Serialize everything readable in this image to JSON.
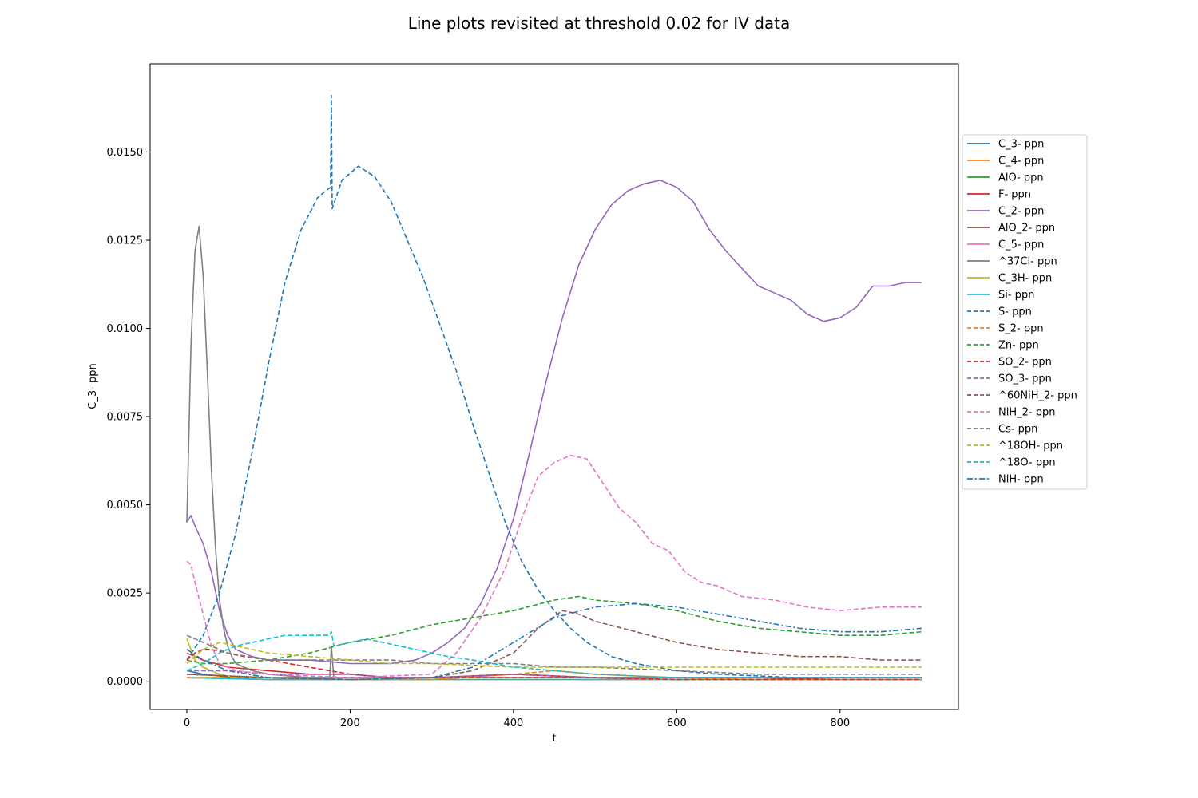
{
  "chart_data": {
    "type": "line",
    "title": "Line plots revisited at threshold 0.02 for IV data",
    "xlabel": "t",
    "ylabel": "C_3- ppn",
    "xlim": [
      -45,
      945
    ],
    "ylim": [
      -0.0008,
      0.0175
    ],
    "xticks": [
      0,
      200,
      400,
      600,
      800
    ],
    "xtick_labels": [
      "0",
      "200",
      "400",
      "600",
      "800"
    ],
    "yticks": [
      0.0,
      0.0025,
      0.005,
      0.0075,
      0.01,
      0.0125,
      0.015
    ],
    "ytick_labels": [
      "0.0000",
      "0.0025",
      "0.0050",
      "0.0075",
      "0.0100",
      "0.0125",
      "0.0150"
    ],
    "grid": false,
    "legend_position": "outside right",
    "series": [
      {
        "name": "C_3- ppn",
        "color": "#1f77b4",
        "dash": "solid",
        "x": [
          0,
          20,
          60,
          100,
          200,
          300,
          400,
          500,
          600,
          700,
          800,
          900
        ],
        "y": [
          0.0003,
          0.0002,
          0.0001,
          0.0001,
          0.0001,
          0.0001,
          0.0001,
          0.0001,
          0.0001,
          0.0001,
          0.0001,
          0.0001
        ]
      },
      {
        "name": "C_4- ppn",
        "color": "#ff7f0e",
        "dash": "solid",
        "x": [
          0,
          100,
          200,
          300,
          400,
          500,
          600,
          700,
          800,
          900
        ],
        "y": [
          0.0001,
          5e-05,
          5e-05,
          5e-05,
          0.0002,
          0.0001,
          5e-05,
          5e-05,
          5e-05,
          5e-05
        ]
      },
      {
        "name": "AlO- ppn",
        "color": "#2ca02c",
        "dash": "solid",
        "x": [
          0,
          100,
          200,
          300,
          400,
          500,
          600,
          700,
          800,
          900
        ],
        "y": [
          0.0001,
          0.0001,
          0.0001,
          0.0001,
          0.0001,
          0.0001,
          0.0001,
          0.0001,
          0.0001,
          0.0001
        ]
      },
      {
        "name": "F- ppn",
        "color": "#d62728",
        "dash": "solid",
        "x": [
          0,
          20,
          50,
          100,
          150,
          200,
          250,
          300,
          400,
          500,
          600,
          700,
          800,
          900
        ],
        "y": [
          0.0008,
          0.0006,
          0.0004,
          0.0003,
          0.0002,
          0.0002,
          0.0001,
          0.0001,
          0.0002,
          0.0001,
          0.0001,
          0.0001,
          5e-05,
          5e-05
        ]
      },
      {
        "name": "C_2- ppn",
        "color": "#9467bd",
        "dash": "solid",
        "x": [
          0,
          5,
          10,
          20,
          30,
          40,
          50,
          60,
          80,
          100,
          150,
          200,
          250,
          280,
          300,
          320,
          340,
          360,
          380,
          400,
          420,
          440,
          460,
          480,
          500,
          520,
          540,
          560,
          580,
          600,
          620,
          640,
          660,
          680,
          700,
          720,
          740,
          760,
          780,
          800,
          820,
          840,
          860,
          880,
          900
        ],
        "y": [
          0.0045,
          0.0047,
          0.0044,
          0.0039,
          0.0031,
          0.002,
          0.0013,
          0.0009,
          0.0007,
          0.0006,
          0.0006,
          0.0005,
          0.0005,
          0.0006,
          0.0008,
          0.0011,
          0.0015,
          0.0022,
          0.0032,
          0.0046,
          0.0065,
          0.0085,
          0.0103,
          0.0118,
          0.0128,
          0.0135,
          0.0139,
          0.0141,
          0.0142,
          0.014,
          0.0136,
          0.0128,
          0.0122,
          0.0117,
          0.0112,
          0.011,
          0.0108,
          0.0104,
          0.0102,
          0.0103,
          0.0106,
          0.0112,
          0.0112,
          0.0113,
          0.0113
        ]
      },
      {
        "name": "AlO_2- ppn",
        "color": "#8c564b",
        "dash": "solid",
        "x": [
          0,
          100,
          200,
          300,
          400,
          500,
          600,
          700,
          800,
          900
        ],
        "y": [
          0.0002,
          0.0001,
          0.0001,
          0.0001,
          0.0001,
          0.0001,
          0.0001,
          0.0001,
          0.0001,
          0.0001
        ]
      },
      {
        "name": "C_5- ppn",
        "color": "#e377c2",
        "dash": "solid",
        "x": [
          0,
          100,
          200,
          300,
          400,
          500,
          600,
          700,
          800,
          900
        ],
        "y": [
          0.0001,
          5e-05,
          5e-05,
          5e-05,
          5e-05,
          5e-05,
          5e-05,
          5e-05,
          5e-05,
          5e-05
        ]
      },
      {
        "name": "^37Cl- ppn",
        "color": "#7f7f7f",
        "dash": "solid",
        "x": [
          0,
          5,
          10,
          15,
          20,
          25,
          30,
          35,
          40,
          45,
          50,
          55,
          60,
          70,
          80,
          100,
          150,
          175,
          177,
          180,
          200,
          300,
          400,
          500,
          600,
          700,
          800,
          900
        ],
        "y": [
          0.0045,
          0.0095,
          0.0122,
          0.0129,
          0.0115,
          0.0088,
          0.006,
          0.0038,
          0.0023,
          0.0015,
          0.001,
          0.0007,
          0.0005,
          0.0004,
          0.0003,
          0.0002,
          0.0001,
          0.0001,
          0.001,
          0.0001,
          0.0001,
          0.0001,
          0.0001,
          0.0001,
          0.0001,
          0.0001,
          0.0001,
          0.0001
        ]
      },
      {
        "name": "C_3H- ppn",
        "color": "#bcbd22",
        "dash": "solid",
        "x": [
          0,
          5,
          10,
          20,
          40,
          60,
          100,
          200,
          300,
          400,
          500,
          600,
          700,
          800,
          900
        ],
        "y": [
          0.0012,
          0.0009,
          0.0006,
          0.0004,
          0.0002,
          0.0001,
          0.0001,
          5e-05,
          5e-05,
          5e-05,
          5e-05,
          5e-05,
          5e-05,
          5e-05,
          5e-05
        ]
      },
      {
        "name": "Si- ppn",
        "color": "#17becf",
        "dash": "solid",
        "x": [
          0,
          100,
          200,
          300,
          400,
          500,
          600,
          700,
          800,
          900
        ],
        "y": [
          0.0001,
          5e-05,
          5e-05,
          5e-05,
          5e-05,
          5e-05,
          5e-05,
          5e-05,
          5e-05,
          5e-05
        ]
      },
      {
        "name": "S- ppn",
        "color": "#1f77b4",
        "dash": "dashed",
        "x": [
          0,
          20,
          40,
          60,
          80,
          100,
          120,
          140,
          160,
          170,
          176,
          177,
          178,
          190,
          210,
          230,
          250,
          270,
          290,
          310,
          330,
          350,
          370,
          390,
          410,
          430,
          450,
          470,
          490,
          520,
          550,
          600,
          650,
          700,
          750,
          800,
          850,
          900
        ],
        "y": [
          0.0006,
          0.0013,
          0.0025,
          0.0042,
          0.0065,
          0.009,
          0.0113,
          0.0128,
          0.0137,
          0.0139,
          0.014,
          0.0166,
          0.0134,
          0.0142,
          0.0146,
          0.0143,
          0.0136,
          0.0125,
          0.0114,
          0.0101,
          0.0088,
          0.0073,
          0.0059,
          0.0045,
          0.0034,
          0.0026,
          0.002,
          0.0015,
          0.0011,
          0.0007,
          0.0005,
          0.0003,
          0.0002,
          0.00015,
          0.0001,
          0.0001,
          0.0001,
          0.0001
        ]
      },
      {
        "name": "S_2- ppn",
        "color": "#ff7f0e",
        "dash": "dashed",
        "x": [
          0,
          100,
          200,
          300,
          400,
          450,
          500,
          600,
          700,
          800,
          900
        ],
        "y": [
          0.0001,
          0.0001,
          5e-05,
          5e-05,
          0.0002,
          0.0003,
          0.0002,
          0.0001,
          5e-05,
          5e-05,
          5e-05
        ]
      },
      {
        "name": "Zn- ppn",
        "color": "#2ca02c",
        "dash": "dashed",
        "x": [
          0,
          20,
          50,
          100,
          150,
          200,
          250,
          300,
          350,
          400,
          450,
          480,
          500,
          550,
          600,
          650,
          700,
          750,
          800,
          850,
          900
        ],
        "y": [
          0.0006,
          0.0005,
          0.0005,
          0.0006,
          0.0008,
          0.0011,
          0.0013,
          0.0016,
          0.0018,
          0.002,
          0.0023,
          0.0024,
          0.0023,
          0.0022,
          0.002,
          0.0017,
          0.0015,
          0.0014,
          0.0013,
          0.0013,
          0.0014
        ]
      },
      {
        "name": "SO_2- ppn",
        "color": "#d62728",
        "dash": "dashed",
        "x": [
          0,
          10,
          20,
          30,
          50,
          70,
          100,
          150,
          200,
          250,
          300,
          400,
          500,
          600,
          700,
          800,
          900
        ],
        "y": [
          0.0006,
          0.0008,
          0.0009,
          0.0009,
          0.0008,
          0.0007,
          0.0006,
          0.0004,
          0.0002,
          0.0001,
          0.0001,
          0.0001,
          0.0001,
          5e-05,
          5e-05,
          5e-05,
          5e-05
        ]
      },
      {
        "name": "SO_3- ppn",
        "color": "#9467bd",
        "dash": "dashed",
        "x": [
          0,
          50,
          100,
          150,
          200,
          250,
          300,
          400,
          500,
          600,
          700,
          800,
          900
        ],
        "y": [
          0.0003,
          0.0003,
          0.0002,
          0.0002,
          0.0002,
          0.0001,
          0.0001,
          0.0002,
          0.0001,
          0.0001,
          0.0001,
          0.0001,
          0.0001
        ]
      },
      {
        "name": "^60NiH_2- ppn",
        "color": "#8c564b",
        "dash": "dashed",
        "x": [
          0,
          100,
          200,
          300,
          350,
          400,
          430,
          460,
          480,
          500,
          550,
          600,
          650,
          700,
          750,
          800,
          850,
          900
        ],
        "y": [
          0.0002,
          0.0001,
          5e-05,
          0.0001,
          0.0003,
          0.0008,
          0.0015,
          0.002,
          0.0019,
          0.0017,
          0.0014,
          0.0011,
          0.0009,
          0.0008,
          0.0007,
          0.0007,
          0.0006,
          0.0006
        ]
      },
      {
        "name": "NiH_2- ppn",
        "color": "#e377c2",
        "dash": "dashed",
        "x": [
          0,
          5,
          10,
          20,
          30,
          40,
          60,
          100,
          200,
          300,
          330,
          360,
          390,
          410,
          430,
          450,
          470,
          490,
          510,
          530,
          550,
          570,
          590,
          610,
          630,
          650,
          680,
          720,
          760,
          800,
          850,
          900
        ],
        "y": [
          0.0034,
          0.0033,
          0.0028,
          0.0019,
          0.001,
          0.0005,
          0.0003,
          0.0002,
          0.0001,
          0.0002,
          0.0008,
          0.0018,
          0.0032,
          0.0046,
          0.0058,
          0.0062,
          0.0064,
          0.0063,
          0.0056,
          0.0049,
          0.0045,
          0.0039,
          0.0037,
          0.0031,
          0.0028,
          0.0027,
          0.0024,
          0.0023,
          0.0021,
          0.002,
          0.0021,
          0.0021
        ]
      },
      {
        "name": "Cs- ppn",
        "color": "#7f7f7f",
        "dash": "dashed",
        "x": [
          0,
          50,
          100,
          150,
          200,
          250,
          300,
          350,
          400,
          450,
          500,
          600,
          700,
          800,
          900
        ],
        "y": [
          0.0013,
          0.0008,
          0.0006,
          0.0006,
          0.0006,
          0.0006,
          0.0005,
          0.0005,
          0.0005,
          0.0004,
          0.0004,
          0.0003,
          0.0002,
          0.0002,
          0.0002
        ]
      },
      {
        "name": "^18OH- ppn",
        "color": "#bcbd22",
        "dash": "dashed",
        "x": [
          0,
          20,
          40,
          60,
          100,
          150,
          200,
          250,
          300,
          400,
          500,
          600,
          700,
          800,
          900
        ],
        "y": [
          0.0005,
          0.0009,
          0.0011,
          0.001,
          0.0008,
          0.0007,
          0.0006,
          0.0005,
          0.0005,
          0.0004,
          0.0004,
          0.0004,
          0.0004,
          0.0004,
          0.0004
        ]
      },
      {
        "name": "^18O- ppn",
        "color": "#17becf",
        "dash": "dashed",
        "x": [
          0,
          20,
          40,
          60,
          80,
          100,
          120,
          140,
          160,
          175,
          177,
          180,
          200,
          220,
          240,
          260,
          280,
          300,
          320,
          350,
          400,
          500,
          600,
          700,
          800,
          900
        ],
        "y": [
          0.0003,
          0.0005,
          0.0008,
          0.001,
          0.0011,
          0.0012,
          0.0013,
          0.0013,
          0.0013,
          0.0013,
          0.0014,
          0.001,
          0.0011,
          0.0012,
          0.0011,
          0.001,
          0.0009,
          0.0008,
          0.0007,
          0.0006,
          0.0004,
          0.0002,
          0.0001,
          0.0001,
          0.0001,
          0.0001
        ]
      },
      {
        "name": "NiH- ppn",
        "color": "#1f77b4",
        "dash": "dashdot",
        "x": [
          0,
          20,
          50,
          100,
          200,
          300,
          350,
          400,
          450,
          500,
          550,
          600,
          650,
          700,
          750,
          800,
          850,
          900
        ],
        "y": [
          0.0009,
          0.0006,
          0.0003,
          0.0001,
          5e-05,
          0.0001,
          0.0004,
          0.0011,
          0.0018,
          0.0021,
          0.0022,
          0.0021,
          0.0019,
          0.0017,
          0.0015,
          0.0014,
          0.0014,
          0.0015
        ]
      }
    ]
  }
}
